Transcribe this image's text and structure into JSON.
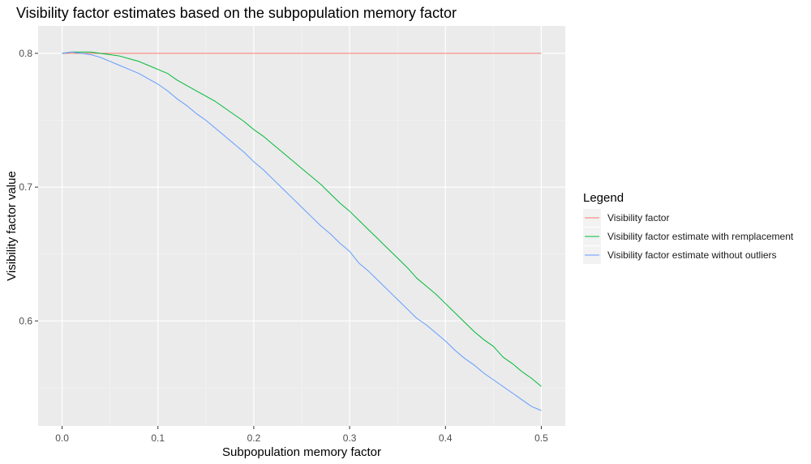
{
  "chart_data": {
    "type": "line",
    "title": "Visibility factor estimates based on the subpopulation memory factor",
    "xlabel": "Subpopulation memory factor",
    "ylabel": "Visibility factor value",
    "xlim": [
      -0.025,
      0.525
    ],
    "ylim": [
      0.5215,
      0.8205
    ],
    "x_ticks": [
      0.0,
      0.1,
      0.2,
      0.3,
      0.4,
      0.5
    ],
    "x_tick_labels": [
      "0.0",
      "0.1",
      "0.2",
      "0.3",
      "0.4",
      "0.5"
    ],
    "y_ticks": [
      0.6,
      0.7,
      0.8
    ],
    "y_tick_labels": [
      "0.6",
      "0.7",
      "0.8"
    ],
    "grid": true,
    "legend": {
      "title": "Legend",
      "position": "right"
    },
    "x": [
      0.0,
      0.01,
      0.02,
      0.03,
      0.04,
      0.05,
      0.06,
      0.07,
      0.08,
      0.09,
      0.1,
      0.11,
      0.12,
      0.13,
      0.14,
      0.15,
      0.16,
      0.17,
      0.18,
      0.19,
      0.2,
      0.21,
      0.22,
      0.23,
      0.24,
      0.25,
      0.26,
      0.27,
      0.28,
      0.29,
      0.3,
      0.31,
      0.32,
      0.33,
      0.34,
      0.35,
      0.36,
      0.37,
      0.38,
      0.39,
      0.4,
      0.41,
      0.42,
      0.43,
      0.44,
      0.45,
      0.46,
      0.47,
      0.48,
      0.49,
      0.5
    ],
    "series": [
      {
        "name": "Visibility factor",
        "color": "#F8766D",
        "values": [
          0.8,
          0.8,
          0.8,
          0.8,
          0.8,
          0.8,
          0.8,
          0.8,
          0.8,
          0.8,
          0.8,
          0.8,
          0.8,
          0.8,
          0.8,
          0.8,
          0.8,
          0.8,
          0.8,
          0.8,
          0.8,
          0.8,
          0.8,
          0.8,
          0.8,
          0.8,
          0.8,
          0.8,
          0.8,
          0.8,
          0.8,
          0.8,
          0.8,
          0.8,
          0.8,
          0.8,
          0.8,
          0.8,
          0.8,
          0.8,
          0.8,
          0.8,
          0.8,
          0.8,
          0.8,
          0.8,
          0.8,
          0.8,
          0.8,
          0.8,
          0.8
        ]
      },
      {
        "name": "Visibility factor estimate with remplacement",
        "color": "#00BA38",
        "values": [
          0.8,
          0.801,
          0.801,
          0.801,
          0.8,
          0.799,
          0.798,
          0.796,
          0.794,
          0.791,
          0.788,
          0.785,
          0.78,
          0.776,
          0.772,
          0.768,
          0.764,
          0.759,
          0.754,
          0.749,
          0.743,
          0.738,
          0.732,
          0.726,
          0.72,
          0.714,
          0.708,
          0.702,
          0.695,
          0.688,
          0.682,
          0.675,
          0.668,
          0.661,
          0.654,
          0.647,
          0.64,
          0.632,
          0.626,
          0.62,
          0.613,
          0.606,
          0.599,
          0.592,
          0.586,
          0.581,
          0.573,
          0.568,
          0.562,
          0.557,
          0.551
        ]
      },
      {
        "name": "Visibility factor estimate without outliers",
        "color": "#619CFF",
        "values": [
          0.8,
          0.801,
          0.8,
          0.799,
          0.797,
          0.794,
          0.791,
          0.788,
          0.785,
          0.781,
          0.777,
          0.772,
          0.766,
          0.761,
          0.755,
          0.75,
          0.744,
          0.738,
          0.732,
          0.726,
          0.719,
          0.713,
          0.706,
          0.699,
          0.692,
          0.685,
          0.678,
          0.671,
          0.665,
          0.658,
          0.652,
          0.643,
          0.637,
          0.63,
          0.623,
          0.616,
          0.609,
          0.602,
          0.597,
          0.591,
          0.585,
          0.578,
          0.572,
          0.567,
          0.561,
          0.556,
          0.551,
          0.546,
          0.541,
          0.536,
          0.533
        ]
      }
    ]
  }
}
